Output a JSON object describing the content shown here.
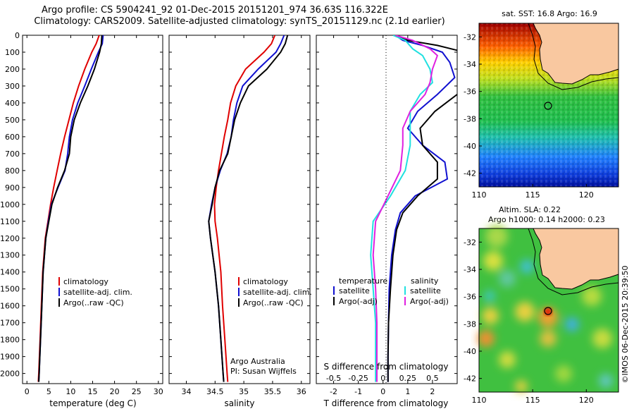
{
  "header": {
    "line1": "Argo profile: CS 5904241_92 01-Dec-2015 20151201_974 36.63S 116.322E",
    "line2": "Climatology: CARS2009. Satellite-adjusted climatology: synTS_20151129.nc (2.1d earlier)"
  },
  "colors": {
    "climatology": "#e00000",
    "satellite": "#1010d0",
    "argo": "#000000",
    "sat_salinity": "#20e0e0",
    "argo_salinity_adj": "#e020e0"
  },
  "watermark": "©IMOS 06-Dec-2015 20:39:50",
  "chart_data": [
    {
      "type": "line",
      "xlabel": "temperature (deg C)",
      "ylabel": "",
      "xlim": [
        -1,
        31
      ],
      "ylim": [
        2060,
        0
      ],
      "xticks": [
        "0",
        "5",
        "10",
        "15",
        "20",
        "25",
        "30"
      ],
      "yticks": [
        "0",
        "100",
        "200",
        "300",
        "400",
        "500",
        "600",
        "700",
        "800",
        "900",
        "1000",
        "1100",
        "1200",
        "1300",
        "1400",
        "1500",
        "1600",
        "1700",
        "1800",
        "1900",
        "2000"
      ],
      "legend": [
        "climatology",
        "satellite-adj. clim.",
        "Argo(..raw -QC)"
      ],
      "series": [
        {
          "name": "climatology",
          "depth": [
            0,
            50,
            100,
            200,
            300,
            400,
            500,
            600,
            700,
            800,
            900,
            1000,
            1100,
            1200,
            1400,
            1600,
            1800,
            2000,
            2050
          ],
          "values": [
            16.5,
            15.8,
            14.8,
            13.2,
            11.8,
            10.6,
            9.6,
            8.6,
            7.7,
            6.9,
            6.1,
            5.4,
            4.8,
            4.2,
            3.6,
            3.3,
            3.0,
            2.7,
            2.6
          ]
        },
        {
          "name": "satellite-adj. clim.",
          "depth": [
            0,
            50,
            100,
            200,
            300,
            400,
            500,
            600,
            700,
            800,
            900,
            1000,
            1100,
            1200,
            1400,
            1600,
            1800,
            2000,
            2050
          ],
          "values": [
            17.4,
            17.2,
            16.3,
            14.7,
            13.2,
            11.6,
            10.4,
            9.7,
            9.3,
            8.7,
            7.1,
            5.6,
            4.9,
            4.3,
            3.7,
            3.4,
            3.1,
            2.8,
            2.7
          ]
        },
        {
          "name": "Argo(..raw -QC)",
          "depth": [
            0,
            50,
            100,
            200,
            300,
            400,
            500,
            600,
            700,
            800,
            900,
            1000,
            1100,
            1200,
            1400,
            1600,
            1800,
            2000,
            2050
          ],
          "values": [
            17.1,
            17.0,
            16.6,
            15.4,
            13.9,
            12.2,
            10.8,
            10.0,
            9.7,
            8.6,
            7.0,
            5.7,
            5.0,
            4.3,
            3.7,
            3.4,
            3.1,
            2.8,
            2.7
          ]
        }
      ]
    },
    {
      "type": "line",
      "xlabel": "salinity",
      "xlim": [
        33.7,
        36.15
      ],
      "ylim": [
        2060,
        0
      ],
      "xticks": [
        "34",
        "34.5",
        "35",
        "35.5",
        "36"
      ],
      "legend": [
        "climatology",
        "satellite-adj. clim.",
        "Argo(..raw -QC)"
      ],
      "annotation": [
        "Argo Australia",
        "PI: Susan Wijffels"
      ],
      "series": [
        {
          "name": "climatology",
          "depth": [
            0,
            50,
            100,
            200,
            300,
            400,
            500,
            600,
            700,
            800,
            900,
            1000,
            1100,
            1200,
            1400,
            1600,
            1800,
            2000,
            2050
          ],
          "values": [
            35.54,
            35.48,
            35.35,
            35.03,
            34.86,
            34.77,
            34.72,
            34.66,
            34.61,
            34.56,
            34.52,
            34.49,
            34.5,
            34.54,
            34.6,
            34.63,
            34.67,
            34.71,
            34.72
          ]
        },
        {
          "name": "satellite-adj. clim.",
          "depth": [
            0,
            50,
            100,
            200,
            300,
            400,
            500,
            600,
            700,
            800,
            900,
            1000,
            1100,
            1200,
            1400,
            1600,
            1800,
            2000,
            2050
          ],
          "values": [
            35.7,
            35.64,
            35.56,
            35.25,
            34.98,
            34.88,
            34.82,
            34.78,
            34.71,
            34.59,
            34.5,
            34.44,
            34.39,
            34.42,
            34.5,
            34.56,
            34.6,
            34.64,
            34.65
          ]
        },
        {
          "name": "Argo(..raw -QC)",
          "depth": [
            0,
            50,
            100,
            200,
            300,
            400,
            500,
            600,
            700,
            800,
            900,
            1000,
            1100,
            1200,
            1400,
            1600,
            1800,
            2000,
            2050
          ],
          "values": [
            35.76,
            35.72,
            35.64,
            35.4,
            35.08,
            34.94,
            34.84,
            34.78,
            34.72,
            34.58,
            34.5,
            34.45,
            34.39,
            34.42,
            34.5,
            34.56,
            34.6,
            34.64,
            34.65
          ]
        }
      ]
    },
    {
      "type": "line",
      "xlabel": "T difference from climatology",
      "xlabel_top": "S difference from climatology",
      "xlim": [
        -2.7,
        3.0
      ],
      "ylim": [
        2060,
        0
      ],
      "xticks": [
        "-2",
        "-1",
        "0",
        "1",
        "2"
      ],
      "xticks_top": [
        "-0.5",
        "-0.25",
        "0",
        "0.25",
        "0.5"
      ],
      "legend_titles": [
        "temperature",
        "salinity"
      ],
      "legend": [
        "satellite",
        "Argo(-adj)",
        "satellite",
        "Argo(-adj)"
      ],
      "series": [
        {
          "name": "temperature satellite",
          "depth": [
            0,
            30,
            60,
            100,
            160,
            250,
            350,
            450,
            550,
            650,
            750,
            850,
            950,
            1050,
            1150,
            1300,
            1500,
            1700,
            1900,
            2050
          ],
          "values": [
            0.5,
            0.8,
            1.6,
            2.4,
            2.7,
            2.9,
            2.2,
            1.4,
            1.0,
            1.6,
            2.5,
            2.6,
            1.3,
            0.7,
            0.5,
            0.35,
            0.25,
            0.22,
            0.2,
            0.2
          ]
        },
        {
          "name": "temperature Argo(-adj)",
          "depth": [
            0,
            30,
            60,
            100,
            160,
            250,
            350,
            450,
            550,
            650,
            750,
            850,
            950,
            1050,
            1150,
            1300,
            1500,
            1700,
            1900,
            2050
          ],
          "values": [
            0.5,
            1.0,
            2.2,
            3.3,
            3.5,
            3.5,
            3.0,
            2.1,
            1.5,
            1.6,
            2.2,
            2.2,
            1.4,
            0.8,
            0.55,
            0.4,
            0.3,
            0.22,
            0.2,
            0.2
          ]
        },
        {
          "name": "salinity satellite",
          "depth": [
            0,
            30,
            80,
            120,
            200,
            280,
            350,
            450,
            550,
            650,
            800,
            950,
            1100,
            1300,
            1500,
            1700,
            1900,
            2050
          ],
          "values": [
            0.4,
            0.9,
            1.2,
            1.6,
            1.9,
            2.0,
            1.5,
            1.1,
            1.1,
            1.1,
            0.9,
            0.3,
            -0.4,
            -0.5,
            -0.4,
            -0.3,
            -0.3,
            -0.3
          ]
        },
        {
          "name": "salinity Argo(-adj)",
          "depth": [
            0,
            30,
            80,
            120,
            200,
            280,
            350,
            450,
            550,
            650,
            800,
            950,
            1100,
            1300,
            1500,
            1700,
            1900,
            2050
          ],
          "values": [
            0.5,
            1.2,
            1.9,
            2.2,
            2.0,
            1.9,
            1.7,
            1.1,
            0.8,
            0.8,
            0.7,
            0.2,
            -0.3,
            -0.4,
            -0.3,
            -0.25,
            -0.25,
            -0.25
          ]
        }
      ]
    },
    {
      "type": "heatmap",
      "title": "sat. SST: 16.8  Argo: 16.9",
      "xlim": [
        110,
        123
      ],
      "ylim": [
        -43,
        -31
      ],
      "xticks": [
        "110",
        "115",
        "120"
      ],
      "yticks": [
        "-32",
        "-34",
        "-36",
        "-38",
        "-40",
        "-42"
      ],
      "marker": [
        116.3,
        -36.6
      ]
    },
    {
      "type": "heatmap",
      "title": "Altim. SLA: 0.22",
      "subtitle": "Argo h1000: 0.14 h2000: 0.23",
      "xlim": [
        110,
        123
      ],
      "ylim": [
        -43,
        -31
      ],
      "xticks": [
        "110",
        "115",
        "120"
      ],
      "yticks": [
        "-32",
        "-34",
        "-36",
        "-38",
        "-40",
        "-42"
      ],
      "marker": [
        116.3,
        -36.6
      ]
    }
  ]
}
